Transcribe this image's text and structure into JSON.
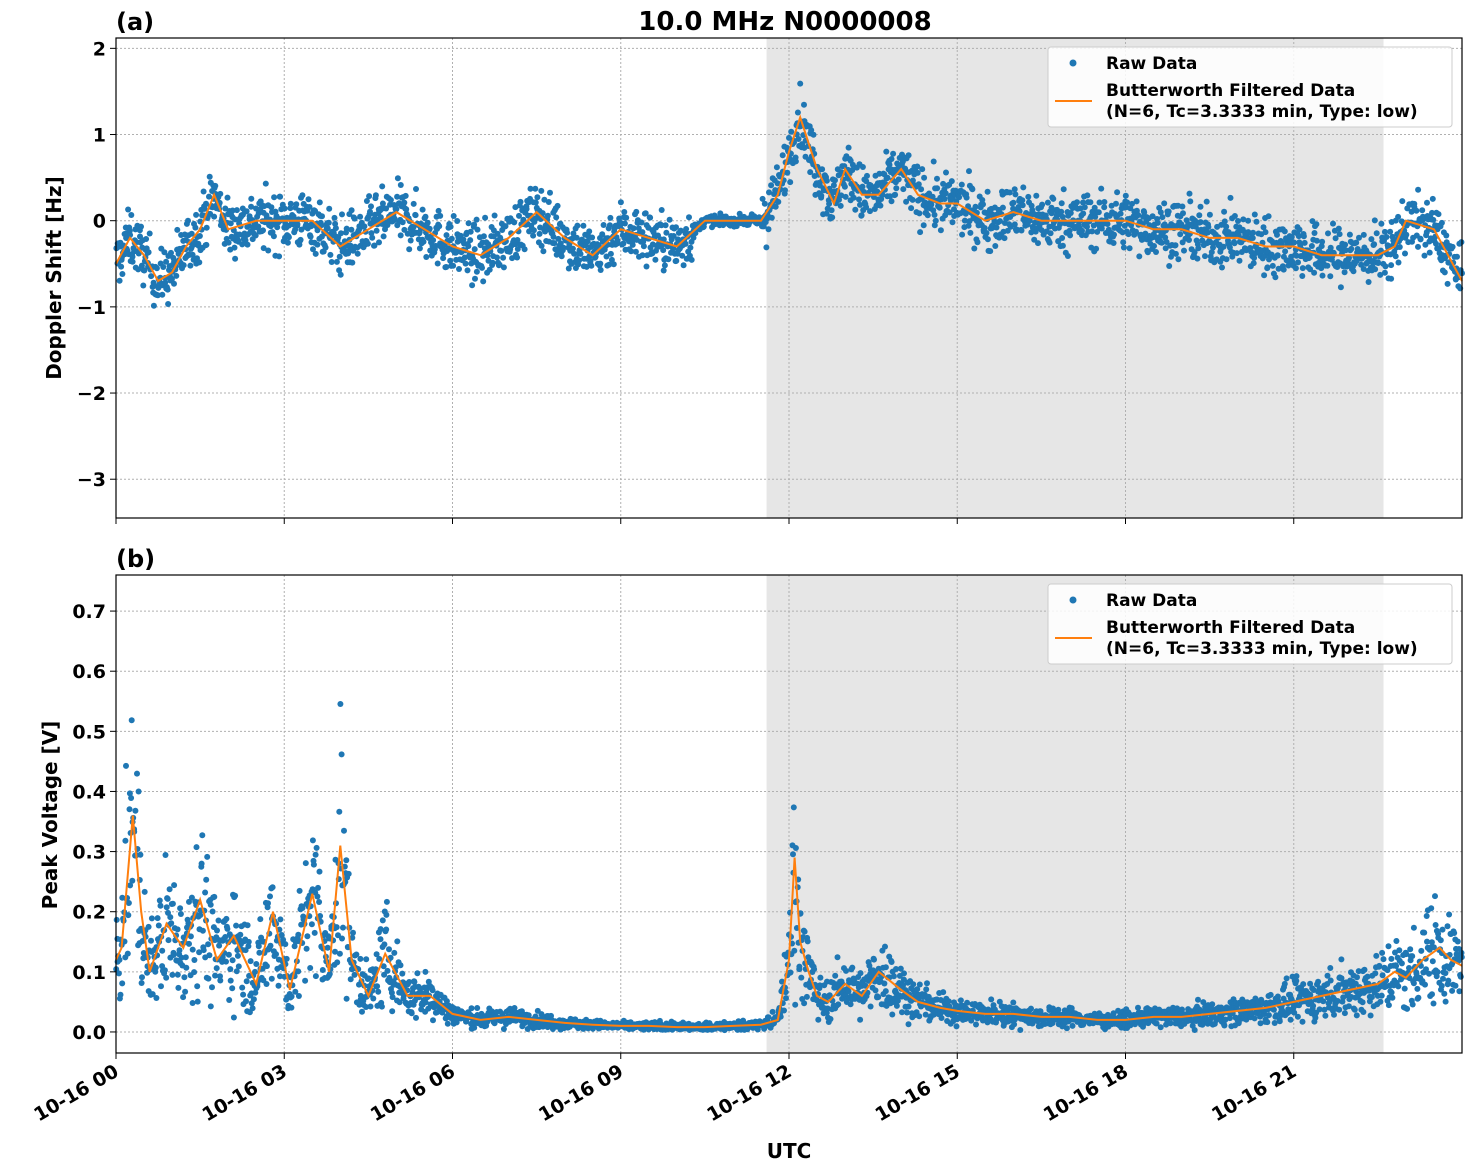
{
  "figure": {
    "title": "10.0 MHz N0000008",
    "xlabel": "UTC"
  },
  "colors": {
    "raw": "#1f77b4",
    "filtered": "#ff7f0e",
    "night_shade": "#e6e6e6"
  },
  "chart_data": [
    {
      "type": "scatter",
      "panel_label": "(a)",
      "title": "10.0 MHz N0000008",
      "ylabel": "Doppler Shift [Hz]",
      "xlabel": "",
      "xlim": [
        0,
        24
      ],
      "ylim": [
        -3.45,
        2.12
      ],
      "x_unit": "hours UTC since 10-16 00:00",
      "yticks": [
        -3,
        -2,
        -1,
        0,
        1,
        2
      ],
      "ytick_labels": [
        "−3",
        "−2",
        "−1",
        "0",
        "1",
        "2"
      ],
      "xticks": [
        0,
        3,
        6,
        9,
        12,
        15,
        18,
        21
      ],
      "xtick_labels": [
        "",
        "",
        "",
        "",
        "",
        "",
        "",
        ""
      ],
      "grid": true,
      "shaded_region": [
        11.6,
        22.6
      ],
      "legend": {
        "placement": "top-right",
        "entries": [
          {
            "label": "Raw Data"
          },
          {
            "label": "Butterworth Filtered Data",
            "label2": "(N=6, Tc=3.3333 min, Type: low)"
          }
        ]
      },
      "series": [
        {
          "name": "Butterworth Filtered Data",
          "kind": "line",
          "x": [
            0,
            0.25,
            0.5,
            0.75,
            1.0,
            1.25,
            1.5,
            1.75,
            2.0,
            2.5,
            3.0,
            3.5,
            4.0,
            4.5,
            5.0,
            5.5,
            6.0,
            6.5,
            7.0,
            7.5,
            8.0,
            8.5,
            9.0,
            9.5,
            10.0,
            10.5,
            11.0,
            11.5,
            11.8,
            12.0,
            12.2,
            12.5,
            12.8,
            13.0,
            13.3,
            13.6,
            14.0,
            14.3,
            14.7,
            15.0,
            15.5,
            16.0,
            16.5,
            17.0,
            17.5,
            18.0,
            18.5,
            19.0,
            19.5,
            20.0,
            20.5,
            21.0,
            21.5,
            22.0,
            22.5,
            22.8,
            23.0,
            23.5,
            24.0
          ],
          "y": [
            -0.5,
            -0.2,
            -0.4,
            -0.7,
            -0.6,
            -0.3,
            -0.1,
            0.3,
            -0.1,
            0.0,
            0.0,
            0.0,
            -0.3,
            -0.1,
            0.1,
            -0.1,
            -0.3,
            -0.4,
            -0.2,
            0.1,
            -0.2,
            -0.4,
            -0.1,
            -0.2,
            -0.3,
            0.0,
            0.0,
            0.0,
            0.3,
            0.8,
            1.2,
            0.6,
            0.2,
            0.6,
            0.3,
            0.3,
            0.6,
            0.3,
            0.2,
            0.2,
            0.0,
            0.1,
            0.0,
            0.0,
            0.0,
            0.0,
            -0.1,
            -0.1,
            -0.2,
            -0.2,
            -0.3,
            -0.3,
            -0.4,
            -0.4,
            -0.4,
            -0.3,
            0.0,
            -0.1,
            -0.7
          ]
        }
      ]
    },
    {
      "type": "scatter",
      "panel_label": "(b)",
      "ylabel": "Peak Voltage [V]",
      "xlabel": "UTC",
      "xlim": [
        0,
        24
      ],
      "ylim": [
        -0.035,
        0.76
      ],
      "x_unit": "hours UTC since 10-16 00:00",
      "yticks": [
        0.0,
        0.1,
        0.2,
        0.3,
        0.4,
        0.5,
        0.6,
        0.7
      ],
      "ytick_labels": [
        "0.0",
        "0.1",
        "0.2",
        "0.3",
        "0.4",
        "0.5",
        "0.6",
        "0.7"
      ],
      "xticks": [
        0,
        3,
        6,
        9,
        12,
        15,
        18,
        21
      ],
      "xtick_labels": [
        "10-16 00",
        "10-16 03",
        "10-16 06",
        "10-16 09",
        "10-16 12",
        "10-16 15",
        "10-16 18",
        "10-16 21"
      ],
      "grid": true,
      "shaded_region": [
        11.6,
        22.6
      ],
      "legend": {
        "placement": "top-right",
        "entries": [
          {
            "label": "Raw Data"
          },
          {
            "label": "Butterworth Filtered Data",
            "label2": "(N=6, Tc=3.3333 min, Type: low)"
          }
        ]
      },
      "series": [
        {
          "name": "Butterworth Filtered Data",
          "kind": "line",
          "x": [
            0,
            0.1,
            0.3,
            0.45,
            0.6,
            0.9,
            1.2,
            1.5,
            1.8,
            2.1,
            2.5,
            2.8,
            3.1,
            3.5,
            3.8,
            4.0,
            4.2,
            4.5,
            4.8,
            5.2,
            5.6,
            6.0,
            6.5,
            7.0,
            7.5,
            8.0,
            8.5,
            9.0,
            9.5,
            10.0,
            10.5,
            11.0,
            11.5,
            11.8,
            12.0,
            12.1,
            12.2,
            12.35,
            12.5,
            12.7,
            13.0,
            13.3,
            13.6,
            14.0,
            14.3,
            14.7,
            15.0,
            15.5,
            16.0,
            16.5,
            17.0,
            17.5,
            18.0,
            18.5,
            19.0,
            19.5,
            20.0,
            20.5,
            21.0,
            21.5,
            22.0,
            22.5,
            22.8,
            23.0,
            23.3,
            23.6,
            23.8,
            24.0
          ],
          "y": [
            0.12,
            0.14,
            0.36,
            0.2,
            0.1,
            0.18,
            0.14,
            0.22,
            0.12,
            0.16,
            0.08,
            0.2,
            0.07,
            0.23,
            0.1,
            0.31,
            0.12,
            0.06,
            0.13,
            0.06,
            0.06,
            0.03,
            0.02,
            0.025,
            0.02,
            0.015,
            0.012,
            0.01,
            0.01,
            0.008,
            0.008,
            0.01,
            0.012,
            0.02,
            0.12,
            0.29,
            0.15,
            0.1,
            0.06,
            0.05,
            0.08,
            0.06,
            0.1,
            0.07,
            0.05,
            0.04,
            0.035,
            0.03,
            0.03,
            0.025,
            0.025,
            0.02,
            0.02,
            0.025,
            0.025,
            0.03,
            0.035,
            0.04,
            0.05,
            0.06,
            0.07,
            0.08,
            0.1,
            0.09,
            0.12,
            0.14,
            0.12,
            0.11
          ]
        }
      ]
    }
  ]
}
